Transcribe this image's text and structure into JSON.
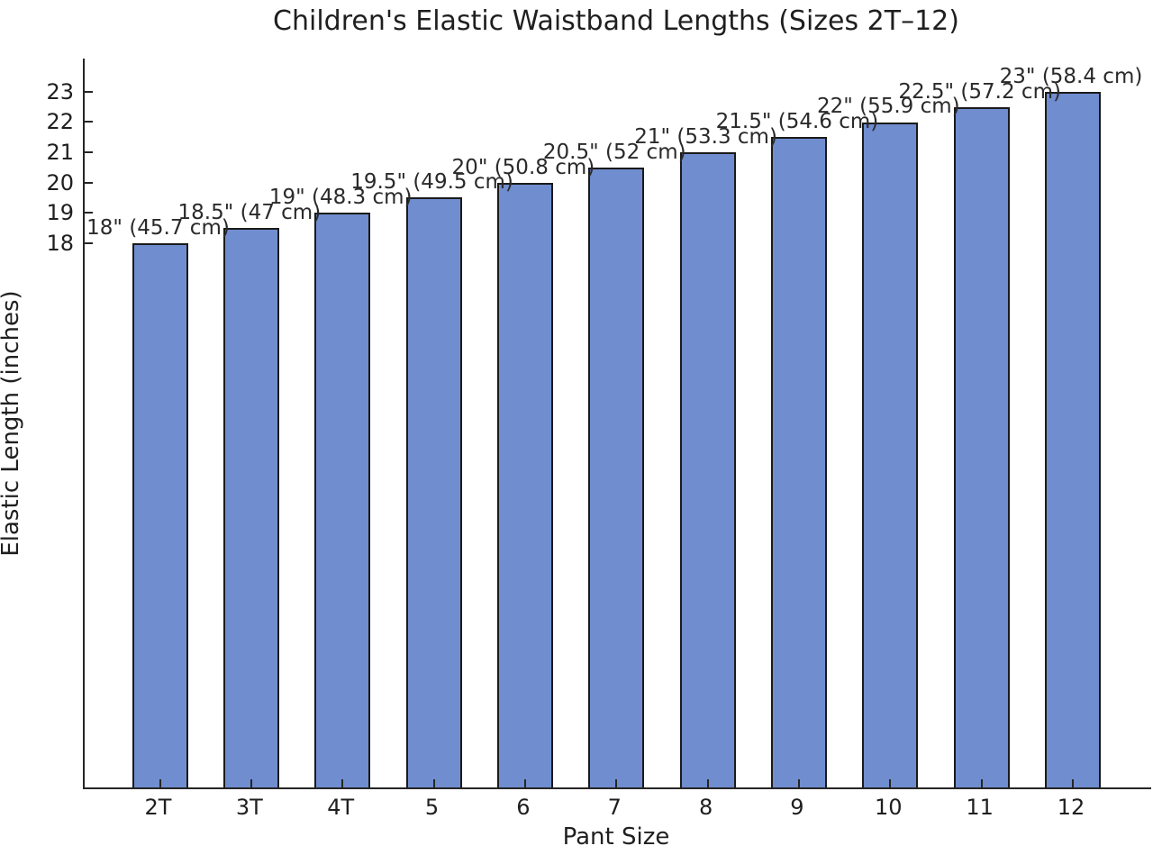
{
  "chart_data": {
    "type": "bar",
    "title": "Children's Elastic Waistband Lengths (Sizes 2T–12)",
    "xlabel": "Pant Size",
    "ylabel": "Elastic Length (inches)",
    "categories": [
      "2T",
      "3T",
      "4T",
      "5",
      "6",
      "7",
      "8",
      "9",
      "10",
      "11",
      "12"
    ],
    "values": [
      18,
      18.5,
      19,
      19.5,
      20,
      20.5,
      21,
      21.5,
      22,
      22.5,
      23
    ],
    "bar_labels": [
      "18\" (45.7 cm)",
      "18.5\" (47 cm)",
      "19\" (48.3 cm)",
      "19.5\" (49.5 cm)",
      "20\" (50.8 cm)",
      "20.5\" (52 cm)",
      "21\" (53.3 cm)",
      "21.5\" (54.6 cm)",
      "22\" (55.9 cm)",
      "22.5\" (57.2 cm)",
      "23\" (58.4 cm)"
    ],
    "yticks": [
      18,
      19,
      20,
      21,
      22,
      23
    ],
    "ylim": [
      0,
      24.1
    ],
    "grid": false,
    "legend": null,
    "bar_color": "#6F8DCF",
    "bar_edge_color": "#1a1a1a",
    "text_color": "#1f1f1f"
  }
}
